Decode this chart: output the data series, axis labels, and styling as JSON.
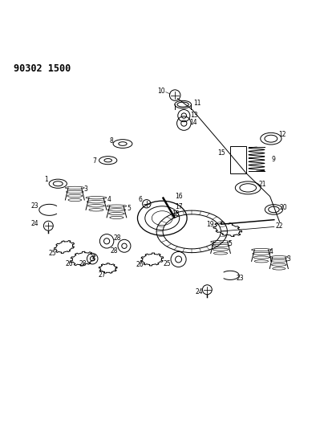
{
  "title": "90302 1500",
  "bg_color": "#ffffff",
  "line_color": "#000000",
  "fig_width": 3.99,
  "fig_height": 5.33,
  "dpi": 100,
  "title_fontsize": 8.5,
  "title_fontweight": "bold"
}
